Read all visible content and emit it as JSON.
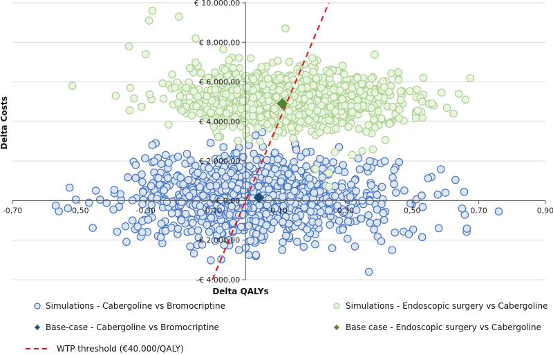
{
  "chart_data": {
    "type": "scatter",
    "xlabel": "Delta QALYs",
    "ylabel": "Delta Costs",
    "xlim": [
      -0.7,
      0.9
    ],
    "ylim": [
      -4000,
      10000
    ],
    "xticks": [
      -0.7,
      -0.5,
      -0.3,
      -0.1,
      0.1,
      0.3,
      0.5,
      0.7,
      0.9
    ],
    "xtick_labels": [
      "-0,70",
      "-0,50",
      "-0,30",
      "-0,10",
      "0,10",
      "0,30",
      "0,50",
      "0,70",
      "0,90"
    ],
    "yticks": [
      -4000,
      -2000,
      0,
      2000,
      4000,
      6000,
      8000,
      10000
    ],
    "ytick_labels": [
      "-€ 4.000,00",
      "-€ 2.000,00",
      "€ 0,00",
      "€ 2.000,00",
      "€ 4.000,00",
      "€ 6.000,00",
      "€ 8.000,00",
      "€ 10.000,00"
    ],
    "grid": "horizontal",
    "legend_position": "bottom",
    "series": [
      {
        "name": "Simulations - Cabergoline vs Bromocriptine",
        "marker": "circle",
        "color": "#4472C4",
        "fill": "#DCE6F4",
        "distribution": {
          "mean_x": 0.04,
          "sd_x": 0.2,
          "mean_y": 100,
          "sd_y": 1100,
          "n": 900,
          "seed": 7
        },
        "points": [
          [
            -0.57,
            -250
          ],
          [
            -0.51,
            50
          ],
          [
            -0.47,
            -100
          ],
          [
            -0.31,
            -1600
          ],
          [
            -0.27,
            2900
          ],
          [
            -0.28,
            2800
          ],
          [
            0.63,
            1050
          ],
          [
            0.65,
            -400
          ],
          [
            0.76,
            -550
          ],
          [
            0.6,
            400
          ],
          [
            0.53,
            -1850
          ],
          [
            0.58,
            -1400
          ],
          [
            0.35,
            0
          ],
          [
            0.49,
            -1700
          ],
          [
            0.44,
            -2500
          ],
          [
            0.37,
            -3600
          ],
          [
            0.26,
            -2400
          ],
          [
            0.01,
            -2750
          ],
          [
            0.11,
            -2500
          ],
          [
            -0.05,
            -2000
          ],
          [
            -0.02,
            -2500
          ],
          [
            -0.24,
            2300
          ],
          [
            -0.33,
            1800
          ],
          [
            0.03,
            3300
          ],
          [
            0.01,
            2800
          ]
        ]
      },
      {
        "name": "Simulations - Endoscopic surgery vs Cabergoline",
        "marker": "circle",
        "color": "#A9D18E",
        "fill": "#EBF5E2",
        "distribution": {
          "mean_x": 0.14,
          "sd_x": 0.17,
          "mean_y": 5100,
          "sd_y": 800,
          "n": 900,
          "seed": 19
        },
        "points": [
          [
            -0.28,
            9600
          ],
          [
            -0.2,
            9300
          ],
          [
            -0.29,
            9100
          ],
          [
            -0.15,
            8200
          ],
          [
            -0.35,
            7800
          ],
          [
            -0.3,
            7400
          ],
          [
            0.12,
            8700
          ],
          [
            -0.52,
            5800
          ],
          [
            -0.39,
            5300
          ],
          [
            0.64,
            5400
          ],
          [
            0.53,
            5000
          ],
          [
            0.66,
            5100
          ],
          [
            0.25,
            700
          ],
          [
            0.21,
            1600
          ],
          [
            0.25,
            1400
          ],
          [
            0.35,
            2500
          ],
          [
            0.32,
            2300
          ],
          [
            -0.05,
            7100
          ],
          [
            0.2,
            7200
          ]
        ]
      },
      {
        "name": "Base-case - Cabergoline vs Bromocriptine",
        "marker": "diamond",
        "color": "#1F4E79",
        "points": [
          [
            0.04,
            150
          ]
        ]
      },
      {
        "name": "Base case - Endoscopic surgery vs Cabergoline",
        "marker": "diamond",
        "color": "#548235",
        "points": [
          [
            0.11,
            4900
          ]
        ]
      },
      {
        "name": "WTP threshold (€40.000/QALY)",
        "marker": "dashed-line",
        "color": "#E31A1C",
        "line": [
          [
            -0.1,
            -4000
          ],
          [
            0.25,
            10000
          ]
        ]
      }
    ]
  }
}
